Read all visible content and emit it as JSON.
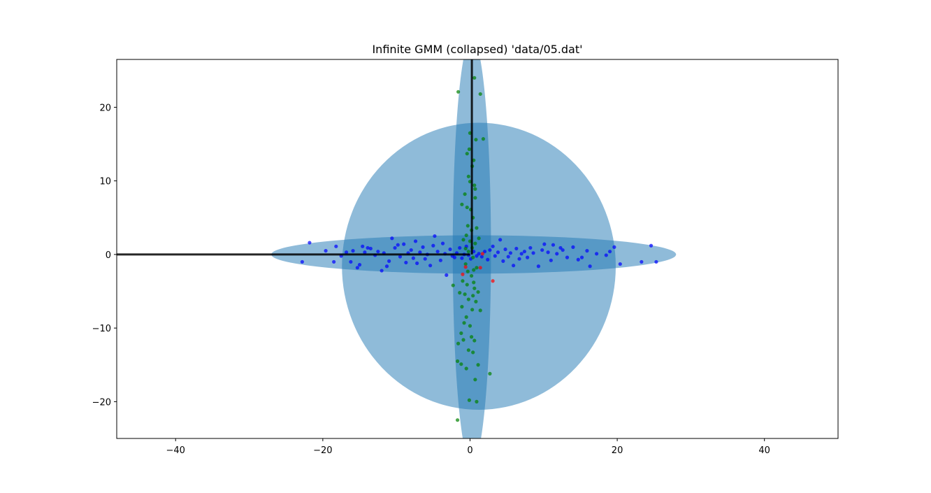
{
  "chart_data": {
    "type": "scatter",
    "title": "Infinite GMM (collapsed) 'data/05.dat'",
    "xlabel": "",
    "ylabel": "",
    "xlim": [
      -48,
      50
    ],
    "ylim": [
      -25,
      26.5
    ],
    "xticks": [
      -40,
      -20,
      0,
      20,
      40
    ],
    "yticks": [
      -20,
      -10,
      0,
      10,
      20
    ],
    "xtick_labels": [
      "−40",
      "−20",
      "0",
      "20",
      "40"
    ],
    "ytick_labels": [
      "−20",
      "−10",
      "0",
      "10",
      "20"
    ],
    "grid": false,
    "ellipses": [
      {
        "cx": 1.2,
        "cy": -1.6,
        "rx": 18.6,
        "ry": 19.5,
        "color": "#1f77b4",
        "opacity": 0.5
      },
      {
        "cx": 0.25,
        "cy": 0.5,
        "rx": 2.6,
        "ry": 29,
        "color": "#1f77b4",
        "opacity": 0.5
      },
      {
        "cx": 0.5,
        "cy": 0.0,
        "rx": 27.5,
        "ry": 2.6,
        "color": "#1f77b4",
        "opacity": 0.5
      }
    ],
    "axis_lines": [
      {
        "x": [
          -48,
          0
        ],
        "y": [
          0,
          0
        ],
        "color": "#000000"
      },
      {
        "x": [
          0.25,
          0.25
        ],
        "y": [
          0,
          26.5
        ],
        "color": "#000000"
      }
    ],
    "series": [
      {
        "color": "#0000ff",
        "points": [
          [
            -21.8,
            1.6
          ],
          [
            -19.6,
            0.5
          ],
          [
            -18.2,
            1.1
          ],
          [
            -17.5,
            -0.2
          ],
          [
            -16.8,
            0.3
          ],
          [
            -16.2,
            -1.0
          ],
          [
            -15.9,
            0.5
          ],
          [
            -15.3,
            -1.8
          ],
          [
            -15.0,
            -1.4
          ],
          [
            -14.6,
            1.1
          ],
          [
            -14.3,
            0.3
          ],
          [
            -13.9,
            0.9
          ],
          [
            -13.5,
            0.8
          ],
          [
            -12.9,
            -0.1
          ],
          [
            -12.5,
            0.4
          ],
          [
            -12.0,
            -2.2
          ],
          [
            -11.7,
            0.2
          ],
          [
            -11.3,
            -1.6
          ],
          [
            -11.0,
            -0.9
          ],
          [
            -10.6,
            2.2
          ],
          [
            -10.2,
            0.9
          ],
          [
            -9.8,
            1.3
          ],
          [
            -9.5,
            -0.3
          ],
          [
            -9.0,
            1.4
          ],
          [
            -8.7,
            -1.1
          ],
          [
            -8.4,
            0.2
          ],
          [
            -8.0,
            0.6
          ],
          [
            -7.7,
            -0.5
          ],
          [
            -7.4,
            1.8
          ],
          [
            -7.2,
            -1.2
          ],
          [
            -6.8,
            0.3
          ],
          [
            -6.4,
            1.0
          ],
          [
            -6.1,
            -0.6
          ],
          [
            -5.8,
            0.0
          ],
          [
            -5.4,
            -1.5
          ],
          [
            -5.0,
            1.2
          ],
          [
            -4.8,
            2.5
          ],
          [
            -4.4,
            0.4
          ],
          [
            -4.0,
            -0.8
          ],
          [
            -3.7,
            1.5
          ],
          [
            -3.4,
            0.1
          ],
          [
            -3.2,
            -2.8
          ],
          [
            -2.7,
            0.7
          ],
          [
            -2.4,
            -0.2
          ],
          [
            -2.1,
            -0.4
          ],
          [
            -1.8,
            0.2
          ],
          [
            -1.4,
            0.9
          ],
          [
            -1.1,
            -0.5
          ],
          [
            -0.8,
            0.0
          ],
          [
            -0.5,
            1.1
          ],
          [
            -0.2,
            -0.1
          ],
          [
            0.1,
            -0.6
          ],
          [
            0.5,
            0.4
          ],
          [
            0.9,
            -0.2
          ],
          [
            1.2,
            0.1
          ],
          [
            1.6,
            -0.3
          ],
          [
            2.0,
            0.4
          ],
          [
            2.4,
            -0.7
          ],
          [
            2.7,
            0.6
          ],
          [
            3.1,
            1.1
          ],
          [
            3.4,
            -0.2
          ],
          [
            3.8,
            0.3
          ],
          [
            4.1,
            2.0
          ],
          [
            4.5,
            -0.9
          ],
          [
            4.8,
            0.7
          ],
          [
            5.2,
            -0.3
          ],
          [
            5.5,
            0.2
          ],
          [
            5.9,
            -1.5
          ],
          [
            6.3,
            0.8
          ],
          [
            6.7,
            -0.6
          ],
          [
            7.0,
            0.1
          ],
          [
            7.4,
            0.4
          ],
          [
            7.8,
            -0.4
          ],
          [
            8.2,
            0.9
          ],
          [
            8.6,
            0.2
          ],
          [
            9.3,
            -1.6
          ],
          [
            9.8,
            0.6
          ],
          [
            10.1,
            1.4
          ],
          [
            10.6,
            0.3
          ],
          [
            11.0,
            -0.8
          ],
          [
            11.3,
            1.3
          ],
          [
            11.8,
            0.1
          ],
          [
            12.3,
            0.9
          ],
          [
            12.6,
            0.6
          ],
          [
            13.2,
            -0.4
          ],
          [
            14.0,
            1.0
          ],
          [
            14.7,
            -0.7
          ],
          [
            15.2,
            -0.4
          ],
          [
            15.9,
            0.5
          ],
          [
            16.3,
            -1.6
          ],
          [
            17.2,
            0.1
          ],
          [
            18.5,
            -0.1
          ],
          [
            19.0,
            0.4
          ],
          [
            19.6,
            1.0
          ],
          [
            20.4,
            -1.3
          ],
          [
            23.3,
            -1.0
          ],
          [
            24.6,
            1.2
          ],
          [
            25.3,
            -1.0
          ],
          [
            -22.8,
            -1.0
          ],
          [
            -18.5,
            -1.0
          ]
        ]
      },
      {
        "color": "#008000",
        "points": [
          [
            -1.6,
            22.1
          ],
          [
            0.6,
            24.0
          ],
          [
            1.4,
            21.8
          ],
          [
            0.0,
            16.5
          ],
          [
            1.8,
            15.7
          ],
          [
            0.8,
            15.6
          ],
          [
            -0.1,
            14.3
          ],
          [
            -0.4,
            13.7
          ],
          [
            0.5,
            12.8
          ],
          [
            0.3,
            12.0
          ],
          [
            -0.2,
            10.6
          ],
          [
            0.0,
            9.9
          ],
          [
            0.6,
            9.4
          ],
          [
            0.7,
            8.9
          ],
          [
            -0.7,
            8.2
          ],
          [
            0.7,
            7.7
          ],
          [
            -1.1,
            6.8
          ],
          [
            -0.4,
            6.4
          ],
          [
            0.1,
            6.1
          ],
          [
            0.4,
            5.0
          ],
          [
            -0.3,
            3.9
          ],
          [
            0.2,
            3.3
          ],
          [
            0.9,
            3.6
          ],
          [
            -0.5,
            2.6
          ],
          [
            -0.9,
            2.0
          ],
          [
            0.0,
            1.8
          ],
          [
            0.7,
            1.5
          ],
          [
            1.2,
            2.2
          ],
          [
            0.3,
            0.9
          ],
          [
            -0.2,
            0.4
          ],
          [
            0.4,
            -0.4
          ],
          [
            -0.6,
            -1.3
          ],
          [
            0.9,
            -1.8
          ],
          [
            -0.3,
            -2.3
          ],
          [
            0.2,
            -2.9
          ],
          [
            -1.0,
            -3.6
          ],
          [
            0.5,
            -3.8
          ],
          [
            -0.4,
            -4.1
          ],
          [
            0.6,
            -4.6
          ],
          [
            -2.3,
            -4.2
          ],
          [
            -1.4,
            -5.2
          ],
          [
            0.4,
            -5.6
          ],
          [
            1.1,
            -5.1
          ],
          [
            -0.7,
            -5.4
          ],
          [
            -0.2,
            -6.1
          ],
          [
            0.8,
            -6.4
          ],
          [
            -1.1,
            -7.1
          ],
          [
            0.3,
            -7.5
          ],
          [
            1.4,
            -7.6
          ],
          [
            -0.5,
            -8.5
          ],
          [
            -0.8,
            -9.3
          ],
          [
            0.0,
            -9.7
          ],
          [
            -1.2,
            -10.7
          ],
          [
            0.2,
            -11.2
          ],
          [
            -0.9,
            -11.6
          ],
          [
            0.6,
            -11.7
          ],
          [
            -1.6,
            -12.1
          ],
          [
            -0.2,
            -13.0
          ],
          [
            0.4,
            -13.3
          ],
          [
            -1.7,
            -14.5
          ],
          [
            -1.2,
            -14.9
          ],
          [
            -0.5,
            -15.5
          ],
          [
            1.1,
            -15.0
          ],
          [
            2.7,
            -16.2
          ],
          [
            0.7,
            -17.0
          ],
          [
            -0.1,
            -19.8
          ],
          [
            0.9,
            -20.0
          ],
          [
            -1.7,
            -22.5
          ],
          [
            0.5,
            -2.1
          ],
          [
            -0.6,
            0.8
          ]
        ]
      },
      {
        "color": "#ff0000",
        "points": [
          [
            1.7,
            0.1
          ],
          [
            1.4,
            -1.8
          ],
          [
            -0.6,
            -1.7
          ],
          [
            -1.0,
            -2.7
          ],
          [
            3.1,
            -3.6
          ]
        ]
      }
    ]
  }
}
